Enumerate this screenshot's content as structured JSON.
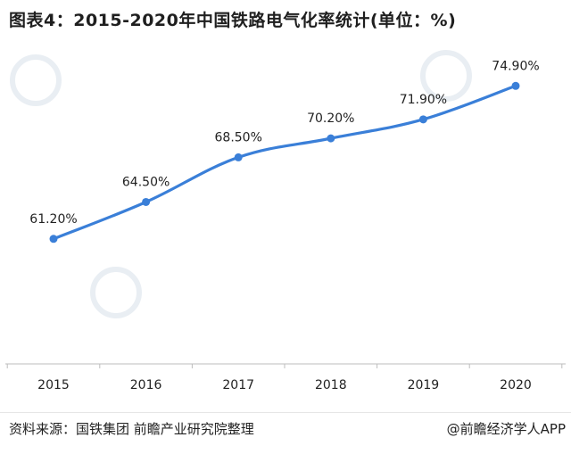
{
  "title": "图表4：2015-2020年中国铁路电气化率统计(单位：%)",
  "source": "资料来源：国铁集团 前瞻产业研究院整理",
  "credit": "@前瞻经济学人APP",
  "colors": {
    "line": "#3a7fd8",
    "axis": "#bdbdbd",
    "text": "#222222",
    "watermark": "#e9eef3"
  },
  "chart_data": {
    "type": "line",
    "title": "图表4：2015-2020年中国铁路电气化率统计(单位：%)",
    "xlabel": "",
    "ylabel": "",
    "categories": [
      "2015",
      "2016",
      "2017",
      "2018",
      "2019",
      "2020"
    ],
    "series": [
      {
        "name": "铁路电气化率",
        "values": [
          61.2,
          64.5,
          68.5,
          70.2,
          71.9,
          74.9
        ],
        "labels": [
          "61.20%",
          "64.50%",
          "68.50%",
          "70.20%",
          "71.90%",
          "74.90%"
        ]
      }
    ],
    "ylim": [
      50,
      77
    ],
    "grid": false,
    "legend": "none"
  }
}
